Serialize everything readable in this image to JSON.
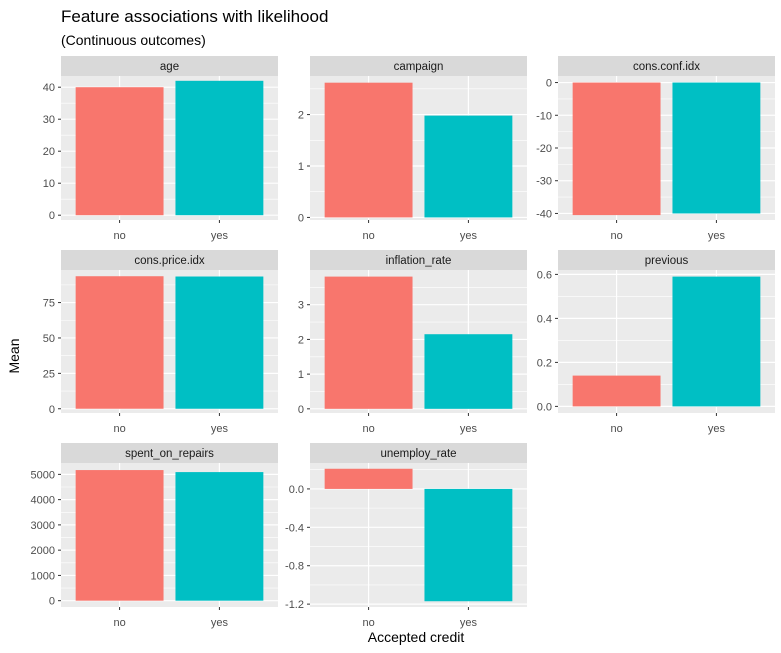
{
  "chart_data": {
    "type": "bar",
    "title": "Feature associations with likelihood",
    "subtitle": "(Continuous outcomes)",
    "xlabel": "Accepted credit",
    "ylabel": "Mean",
    "categories": [
      "no",
      "yes"
    ],
    "colors": {
      "no": "#F8766D",
      "yes": "#00BFC4",
      "panel_bg": "#EBEBEB",
      "strip_bg": "#D9D9D9",
      "grid": "#FFFFFF"
    },
    "grid": true,
    "legend": "none",
    "panels": [
      {
        "name": "age",
        "values": [
          40,
          42
        ],
        "ylim": [
          -1.5,
          43.5
        ],
        "ticks": [
          0,
          10,
          20,
          30,
          40
        ],
        "tick_labels": [
          "0",
          "10",
          "20",
          "30",
          "40"
        ]
      },
      {
        "name": "campaign",
        "values": [
          2.62,
          1.98
        ],
        "ylim": [
          -0.05,
          2.75
        ],
        "ticks": [
          0,
          1,
          2
        ],
        "tick_labels": [
          "0",
          "1",
          "2"
        ]
      },
      {
        "name": "cons.conf.idx",
        "values": [
          -40.5,
          -40.0
        ],
        "ylim": [
          -42,
          2
        ],
        "ticks": [
          0,
          -10,
          -20,
          -30,
          -40
        ],
        "tick_labels": [
          "0",
          "-10",
          "-20",
          "-30",
          "-40"
        ]
      },
      {
        "name": "cons.price.idx",
        "values": [
          93.6,
          93.4
        ],
        "ylim": [
          -3,
          98
        ],
        "ticks": [
          0,
          25,
          50,
          75
        ],
        "tick_labels": [
          "0",
          "25",
          "50",
          "75"
        ]
      },
      {
        "name": "inflation_rate",
        "values": [
          3.81,
          2.15
        ],
        "ylim": [
          -0.12,
          4.0
        ],
        "ticks": [
          0,
          1,
          2,
          3
        ],
        "tick_labels": [
          "0",
          "1",
          "2",
          "3"
        ]
      },
      {
        "name": "previous",
        "values": [
          0.14,
          0.59
        ],
        "ylim": [
          -0.03,
          0.62
        ],
        "ticks": [
          0.0,
          0.2,
          0.4,
          0.6
        ],
        "tick_labels": [
          "0.0",
          "0.2",
          "0.4",
          "0.6"
        ]
      },
      {
        "name": "spent_on_repairs",
        "values": [
          5170,
          5090
        ],
        "ylim": [
          -250,
          5450
        ],
        "ticks": [
          0,
          1000,
          2000,
          3000,
          4000,
          5000
        ],
        "tick_labels": [
          "0",
          "1000",
          "2000",
          "3000",
          "4000",
          "5000"
        ]
      },
      {
        "name": "unemploy_rate",
        "values": [
          0.21,
          -1.17
        ],
        "ylim": [
          -1.23,
          0.27
        ],
        "ticks": [
          0.0,
          -0.4,
          -0.8,
          -1.2
        ],
        "tick_labels": [
          "0.0",
          "-0.4",
          "-0.8",
          "-1.2"
        ]
      }
    ]
  }
}
